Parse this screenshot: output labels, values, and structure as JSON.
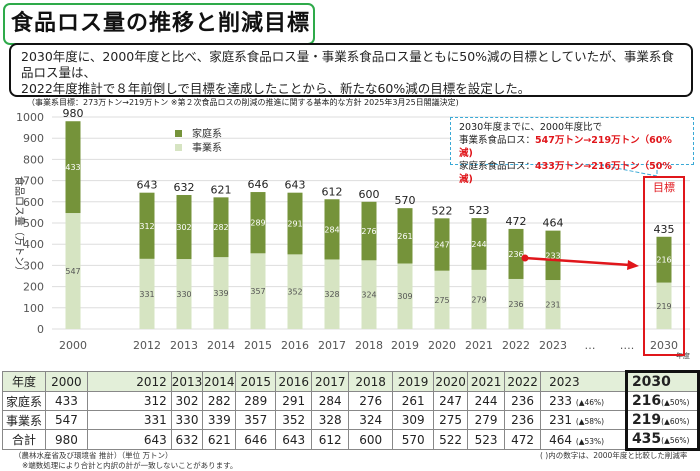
{
  "title": "食品ロス量の推移と削減目標",
  "summary": {
    "line1": "2030年度に、2000年度と比べ、家庭系食品ロス量・事業系食品ロス量ともに50%減の目標としていたが、事業系食品ロス量は、",
    "line2": "2022年度推計で８年前倒しで目標を達成したことから、新たな60%減の目標を設定した。",
    "note": "（事業系目標：273万トン→219万トン ※第２次食品ロスの削減の推進に関する基本的な方針 2025年3月25日閣議決定)"
  },
  "callout": {
    "line1": "2030年度までに、2000年度比で",
    "line2_label": "事業系食品ロス：",
    "line2_value": "547万トン→219万トン（60%減)",
    "line3_label": "家庭系食品ロス：",
    "line3_value": "433万トン→216万トン（50%減)"
  },
  "target_label": "目標",
  "chart_data": {
    "type": "bar",
    "stacked": true,
    "ylabel": "食品ロス量（万トン）",
    "xlabel_unit": "年度",
    "ylim": [
      0,
      1000
    ],
    "yticks": [
      0,
      100,
      200,
      300,
      400,
      500,
      600,
      700,
      800,
      900,
      1000
    ],
    "grid": true,
    "legend": "top-left",
    "categories": [
      "2000",
      "2012",
      "2013",
      "2014",
      "2015",
      "2016",
      "2017",
      "2018",
      "2019",
      "2020",
      "2021",
      "2022",
      "2023",
      "…",
      "….",
      "2030"
    ],
    "series": [
      {
        "name": "事業系",
        "color": "#d6e4c2",
        "values": [
          547,
          331,
          330,
          339,
          357,
          352,
          328,
          324,
          309,
          275,
          279,
          236,
          231,
          null,
          null,
          219
        ]
      },
      {
        "name": "家庭系",
        "color": "#75933a",
        "values": [
          433,
          312,
          302,
          282,
          289,
          291,
          284,
          276,
          261,
          247,
          244,
          236,
          233,
          null,
          null,
          216
        ]
      }
    ],
    "totals": [
      980,
      643,
      632,
      621,
      646,
      643,
      612,
      600,
      570,
      522,
      523,
      472,
      464,
      null,
      null,
      435
    ]
  },
  "table": {
    "header": [
      "年度",
      "2000",
      "2012",
      "2013",
      "2014",
      "2015",
      "2016",
      "2017",
      "2018",
      "2019",
      "2020",
      "2021",
      "2022",
      "2023",
      "2030"
    ],
    "rows": [
      {
        "label": "家庭系",
        "values": [
          "433",
          "312",
          "302",
          "282",
          "289",
          "291",
          "284",
          "276",
          "261",
          "247",
          "244",
          "236",
          "233"
        ],
        "r2023": "(▲46%)",
        "v2030": "216",
        "r2030": "(▲50%)"
      },
      {
        "label": "事業系",
        "values": [
          "547",
          "331",
          "330",
          "339",
          "357",
          "352",
          "328",
          "324",
          "309",
          "275",
          "279",
          "236",
          "231"
        ],
        "r2023": "(▲58%)",
        "v2030": "219",
        "r2030": "(▲60%)"
      },
      {
        "label": "合計",
        "values": [
          "980",
          "643",
          "632",
          "621",
          "646",
          "643",
          "612",
          "600",
          "570",
          "522",
          "523",
          "472",
          "464"
        ],
        "r2023": "(▲53%)",
        "v2030": "435",
        "r2030": "(▲56%)"
      }
    ]
  },
  "footnotes": {
    "source": "（農林水産省及び環境省 推計）（単位 万トン）",
    "rounding": "※端数処理により合計と内訳の計が一致しないことがあります。",
    "ratio": "( )内の数字は、2000年度と比較した削減率"
  }
}
